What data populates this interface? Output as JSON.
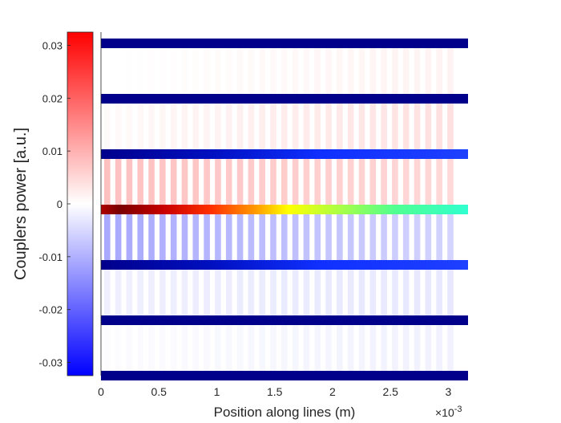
{
  "chart_data": {
    "type": "heatmap",
    "title": "",
    "xlabel": "Position along lines (m)",
    "x_exponent_label": "×10",
    "x_exponent": "-3",
    "ylabel": "Couplers power [a.u.]",
    "xlim": [
      0,
      0.00317
    ],
    "ylim": [
      -0.0325,
      0.0325
    ],
    "colorbar": {
      "position": "left",
      "min": -0.0325,
      "max": 0.0325,
      "colormap": "blue-white-red"
    },
    "x_ticks": [
      0,
      0.0005,
      0.001,
      0.0015,
      0.002,
      0.0025,
      0.003
    ],
    "x_tick_labels": [
      "0",
      "0.5",
      "1",
      "1.5",
      "2",
      "2.5",
      "3"
    ],
    "y_ticks": [
      0.03,
      0.02,
      0.01,
      0,
      -0.01,
      -0.02,
      -0.03
    ],
    "y_tick_labels": [
      "0.03",
      "0.02",
      "0.01",
      "0",
      "-0.01",
      "-0.02",
      "-0.03"
    ],
    "coupler_count": 32,
    "lines": [
      {
        "index": 1,
        "color_start": "#00008B",
        "color_end": "#00008B"
      },
      {
        "index": 2,
        "color_start": "#00008B",
        "color_end": "#00008B"
      },
      {
        "index": 3,
        "color_start": "#00008B",
        "color_end": "#1E40FF"
      },
      {
        "index": 4,
        "color_start": "#7A0000",
        "color_end": "#30FFD0"
      },
      {
        "index": 5,
        "color_start": "#00008B",
        "color_end": "#1E40FF"
      },
      {
        "index": 6,
        "color_start": "#00008B",
        "color_end": "#00008B"
      },
      {
        "index": 7,
        "color_start": "#00008B",
        "color_end": "#00008B"
      }
    ],
    "coupler_gaps": [
      {
        "between_lines": [
          1,
          2
        ],
        "power_start": 0.0,
        "power_end": 0.0016
      },
      {
        "between_lines": [
          2,
          3
        ],
        "power_start": 0.0006,
        "power_end": 0.004
      },
      {
        "between_lines": [
          3,
          4
        ],
        "power_start": 0.008,
        "power_end": 0.005
      },
      {
        "between_lines": [
          4,
          5
        ],
        "power_start": -0.011,
        "power_end": -0.0055
      },
      {
        "between_lines": [
          5,
          6
        ],
        "power_start": -0.002,
        "power_end": -0.003
      },
      {
        "between_lines": [
          6,
          7
        ],
        "power_start": -0.0004,
        "power_end": -0.0018
      }
    ]
  }
}
